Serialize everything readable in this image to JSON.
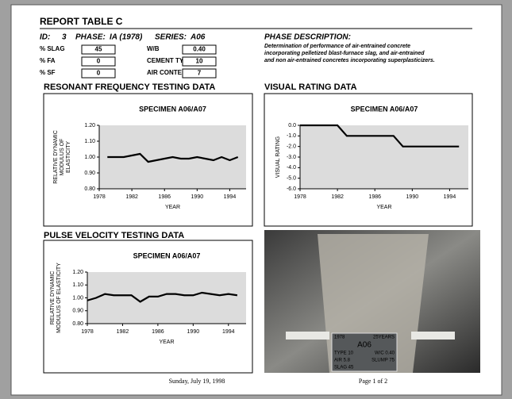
{
  "header": {
    "title": "REPORT TABLE C",
    "id_label": "ID:",
    "id": "3",
    "phase_label": "PHASE:",
    "phase": "IA (1978)",
    "series_label": "SERIES:",
    "series": "A06"
  },
  "fields": [
    {
      "label": "% SLAG",
      "value": "45"
    },
    {
      "label": "% FA",
      "value": "0"
    },
    {
      "label": "% SF",
      "value": "0"
    },
    {
      "label": "W/B",
      "value": "0.40"
    },
    {
      "label": "CEMENT TYPE",
      "value": "10"
    },
    {
      "label": "AIR CONTENT",
      "value": "7"
    }
  ],
  "description": {
    "title": "PHASE DESCRIPTION:",
    "lines": [
      "Determination of performance of air-entrained concrete",
      "incorporating pelletized blast-furnace slag, and air-entrained",
      "and non air-entrained concretes incorporating superplasticizers."
    ]
  },
  "chart_data": [
    {
      "type": "line",
      "section": "RESONANT FREQUENCY TESTING DATA",
      "title": "SPECIMEN A06/A07",
      "ylabel": [
        "RELATIVE DYNAMIC",
        "MODULUS OF",
        "ELASTICITY"
      ],
      "xlabel": "YEAR",
      "x": [
        1979,
        1981,
        1982,
        1983,
        1984,
        1985,
        1986,
        1987,
        1988,
        1989,
        1990,
        1991,
        1992,
        1993,
        1994,
        1995
      ],
      "series": [
        {
          "color": "#000000",
          "values": [
            1.0,
            1.0,
            1.01,
            1.02,
            0.97,
            0.98,
            0.99,
            1.0,
            0.99,
            0.99,
            1.0,
            0.99,
            0.98,
            1.0,
            0.98,
            1.0
          ]
        }
      ],
      "xlim": [
        1978,
        1996
      ],
      "xticks": [
        1978,
        1982,
        1986,
        1990,
        1994
      ],
      "ylim": [
        0.8,
        1.2
      ],
      "yticks": [
        {
          "value": 0.8,
          "label": "0.80"
        },
        {
          "value": 0.9,
          "label": "0.90"
        },
        {
          "value": 1,
          "label": "1.00"
        },
        {
          "value": 1.1,
          "label": "1.10"
        },
        {
          "value": 1.2,
          "label": "1.20"
        }
      ]
    },
    {
      "type": "line",
      "section": "VISUAL RATING DATA",
      "title": "SPECIMEN A06/A07",
      "ylabel": [
        "VISUAL RATING"
      ],
      "xlabel": "YEAR",
      "x": [
        1978,
        1982,
        1983,
        1988,
        1989,
        1995
      ],
      "series": [
        {
          "color": "#000000",
          "values": [
            0,
            0,
            -1,
            -1,
            -2,
            -2
          ]
        }
      ],
      "xlim": [
        1978,
        1996
      ],
      "xticks": [
        1978,
        1982,
        1986,
        1990,
        1994
      ],
      "ylim": [
        -6,
        0
      ],
      "yticks": [
        {
          "value": 0,
          "label": "0.0"
        },
        {
          "value": -1,
          "label": "-1.0"
        },
        {
          "value": -2,
          "label": "-2.0"
        },
        {
          "value": -3,
          "label": "-3.0"
        },
        {
          "value": -4,
          "label": "-4.0"
        },
        {
          "value": -5,
          "label": "-5.0"
        },
        {
          "value": -6,
          "label": "-6.0"
        }
      ]
    },
    {
      "type": "line",
      "section": "PULSE VELOCITY TESTING DATA",
      "title": "SPECIMEN A06/A07",
      "ylabel": [
        "RELATIVE DYNAMIC",
        "MODULUS OF ELASTICITY"
      ],
      "xlabel": "YEAR",
      "x": [
        1978,
        1979,
        1980,
        1981,
        1982,
        1983,
        1984,
        1985,
        1986,
        1987,
        1988,
        1989,
        1990,
        1991,
        1992,
        1993,
        1994,
        1995
      ],
      "series": [
        {
          "color": "#000000",
          "values": [
            0.98,
            1.0,
            1.03,
            1.02,
            1.02,
            1.02,
            0.97,
            1.01,
            1.01,
            1.03,
            1.03,
            1.02,
            1.02,
            1.04,
            1.03,
            1.02,
            1.03,
            1.02
          ]
        }
      ],
      "xlim": [
        1978,
        1996
      ],
      "xticks": [
        1978,
        1982,
        1986,
        1990,
        1994
      ],
      "ylim": [
        0.8,
        1.2
      ],
      "yticks": [
        {
          "value": 0.8,
          "label": "0.80"
        },
        {
          "value": 0.9,
          "label": "0.90"
        },
        {
          "value": 1,
          "label": "1.00"
        },
        {
          "value": 1.1,
          "label": "1.10"
        },
        {
          "value": 1.2,
          "label": "1.20"
        }
      ]
    }
  ],
  "photo": {
    "year": "1978",
    "age": "25YEARS",
    "code": "A06",
    "type": "TYPE 10",
    "wc": "W/C 0.40",
    "air": "AIR 5.8",
    "slump": "SLUMP 75",
    "slag": "SLAG 45"
  },
  "footer": {
    "date": "Sunday, July 19, 1998",
    "page": "Page 1 of 2"
  }
}
